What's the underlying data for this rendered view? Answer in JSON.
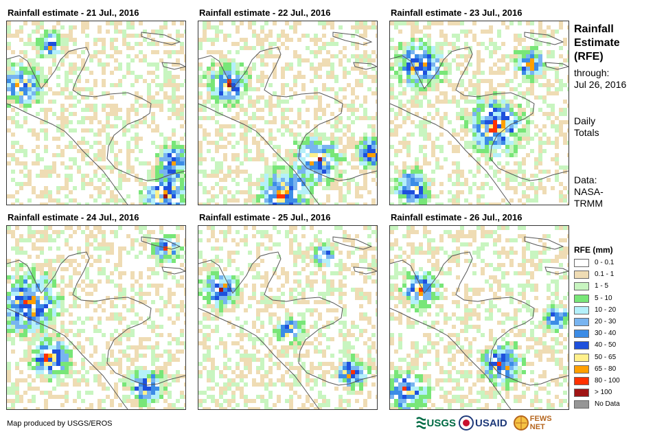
{
  "panels": [
    {
      "title": "Rainfall estimate - 21 Jul., 2016"
    },
    {
      "title": "Rainfall estimate - 22 Jul., 2016"
    },
    {
      "title": "Rainfall estimate - 23 Jul., 2016"
    },
    {
      "title": "Rainfall estimate - 24 Jul., 2016"
    },
    {
      "title": "Rainfall estimate - 25 Jul., 2016"
    },
    {
      "title": "Rainfall estimate - 26 Jul., 2016"
    }
  ],
  "sidebar": {
    "title_line1": "Rainfall",
    "title_line2": "Estimate",
    "title_line3": "(RFE)",
    "through_label": "through:",
    "through_date": "Jul 26, 2016",
    "totals_line1": "Daily",
    "totals_line2": "Totals",
    "data_line1": "Data:",
    "data_line2": "NASA-",
    "data_line3": "TRMM"
  },
  "legend": {
    "title": "RFE (mm)",
    "items": [
      {
        "label": "0 - 0.1",
        "color": "#ffffff"
      },
      {
        "label": "0.1 - 1",
        "color": "#efdcb4"
      },
      {
        "label": "1 - 5",
        "color": "#c8f5c0"
      },
      {
        "label": "5 - 10",
        "color": "#78e678"
      },
      {
        "label": "10 - 20",
        "color": "#b4f0fa"
      },
      {
        "label": "20 - 30",
        "color": "#78b4f0"
      },
      {
        "label": "30 - 40",
        "color": "#3c8ce6"
      },
      {
        "label": "40 - 50",
        "color": "#1e50dc"
      },
      {
        "label": "50 - 65",
        "color": "#fff08c"
      },
      {
        "label": "65 - 80",
        "color": "#ffa000"
      },
      {
        "label": "80 - 100",
        "color": "#ff3200"
      },
      {
        "label": "> 100",
        "color": "#a01414"
      },
      {
        "label": "No Data",
        "color": "#969696"
      }
    ]
  },
  "footer": {
    "credit": "Map produced by USGS/EROS"
  },
  "logos": {
    "usgs": "USGS",
    "usaid": "USAID",
    "fewsnet": "FEWS NET"
  }
}
